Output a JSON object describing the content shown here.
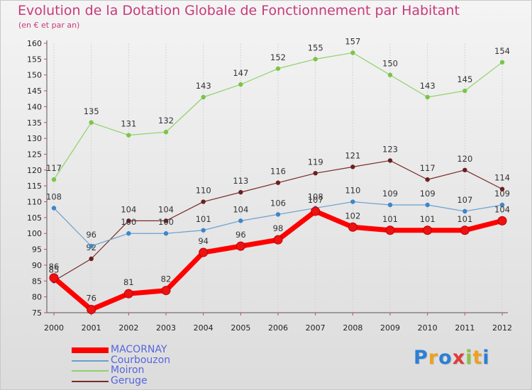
{
  "header": {
    "title": "Evolution de la Dotation Globale de Fonctionnement par Habitant",
    "subtitle": "(en € et par an)"
  },
  "logo": {
    "text": "Proxiti",
    "colors": [
      "#2b7fd4",
      "#f0a020",
      "#2b7fd4",
      "#e23b3b",
      "#8bc34a",
      "#f0a020",
      "#2b7fd4"
    ]
  },
  "chart_data": {
    "type": "line",
    "x": [
      "2000",
      "2001",
      "2002",
      "2003",
      "2004",
      "2005",
      "2006",
      "2007",
      "2008",
      "2009",
      "2010",
      "2011",
      "2012"
    ],
    "ylim": [
      75,
      160
    ],
    "yticks": [
      75,
      80,
      85,
      90,
      95,
      100,
      105,
      110,
      115,
      120,
      125,
      130,
      135,
      140,
      145,
      150,
      155,
      160
    ],
    "grid": "vertical",
    "legend_position": "bottom-left",
    "series": [
      {
        "name": "Moiron",
        "color": "#8fd16a",
        "marker": "#7cc447",
        "width": 1.2,
        "values": [
          117,
          135,
          131,
          132,
          143,
          147,
          152,
          155,
          157,
          150,
          143,
          145,
          154
        ]
      },
      {
        "name": "Geruge",
        "color": "#7a2a2a",
        "marker": "#6b1f1f",
        "width": 1.2,
        "values": [
          85,
          92,
          104,
          104,
          110,
          113,
          116,
          119,
          121,
          123,
          117,
          120,
          114
        ]
      },
      {
        "name": "Courbouzon",
        "color": "#6a9fd0",
        "marker": "#3d86c8",
        "width": 1.2,
        "values": [
          108,
          96,
          100,
          100,
          101,
          104,
          106,
          108,
          110,
          109,
          109,
          107,
          109
        ]
      },
      {
        "name": "MACORNAY",
        "color": "#ff0000",
        "marker": "#ee1111",
        "width": 7,
        "values": [
          86,
          76,
          81,
          82,
          94,
          96,
          98,
          107,
          102,
          101,
          101,
          101,
          104
        ]
      }
    ],
    "legend_order": [
      "MACORNAY",
      "Courbouzon",
      "Moiron",
      "Geruge"
    ]
  }
}
